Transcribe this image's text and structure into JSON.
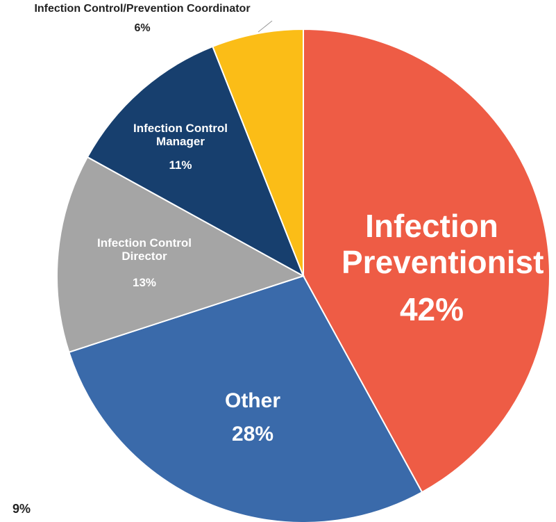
{
  "chart_data": {
    "type": "pie",
    "categories": [
      "Infection Preventionist",
      "Other",
      "Infection Control Director",
      "Infection Control Manager",
      "Infection Control/Prevention Coordinator"
    ],
    "values": [
      42,
      28,
      13,
      11,
      6
    ],
    "value_labels": [
      "42%",
      "28%",
      "13%",
      "11%",
      "6%"
    ],
    "colors": [
      "#ee5c45",
      "#3a6aaa",
      "#a5a5a5",
      "#173f6e",
      "#fbbd17"
    ],
    "annotation": "9%"
  }
}
